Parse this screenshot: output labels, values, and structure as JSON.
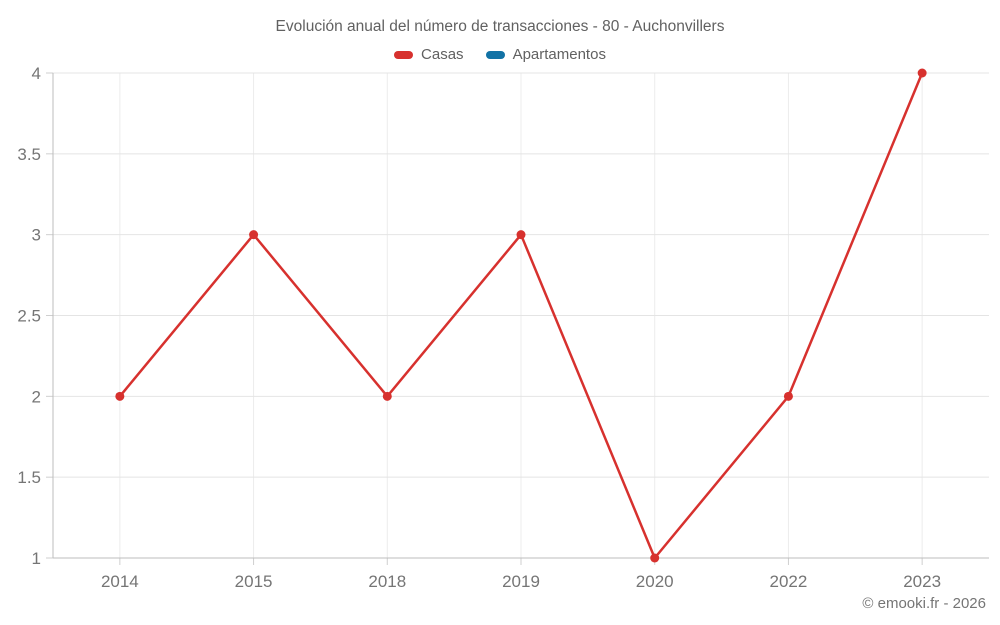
{
  "title": "Evolución anual del número de transacciones - 80 - Auchonvillers",
  "attribution": "© emooki.fr - 2026",
  "colors": {
    "casas_red": "#d7312e",
    "apartamentos_blue": "#1272a5",
    "grid_horizontal": "#e4e4e4",
    "grid_vertical": "#ececec",
    "axis_line": "#bdbdbd",
    "tick_mark": "#cfcfcf",
    "axis_text": "#757575",
    "title_text": "#616161"
  },
  "chart_data": {
    "type": "line",
    "title": "Evolución anual del número de transacciones - 80 - Auchonvillers",
    "categories": [
      "2014",
      "2015",
      "2018",
      "2019",
      "2020",
      "2022",
      "2023"
    ],
    "series": [
      {
        "name": "Casas",
        "color": "#d7312e",
        "values": [
          2,
          3,
          2,
          3,
          1,
          2,
          4
        ]
      },
      {
        "name": "Apartamentos",
        "color": "#1272a5",
        "values": []
      }
    ],
    "xlabel": "",
    "ylabel": "",
    "ylim": [
      1,
      4
    ],
    "yticks": [
      1,
      1.5,
      2,
      2.5,
      3,
      3.5,
      4
    ],
    "grid": true,
    "legend_position": "top",
    "marker": "circle"
  }
}
